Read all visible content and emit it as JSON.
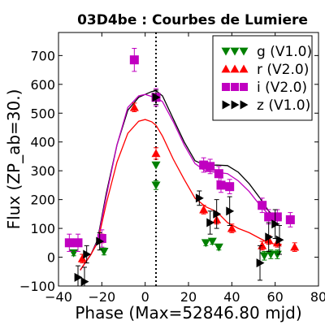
{
  "chart_data": {
    "type": "scatter",
    "title": "03D4be : Courbes de Lumiere",
    "xlabel": "Phase (Max=52846.80 mjd)",
    "ylabel": "Flux (ZP_ab=30.)",
    "xlim": [
      -40,
      80
    ],
    "ylim": [
      -100,
      780
    ],
    "xticks": [
      -40,
      -20,
      0,
      20,
      40,
      60,
      80
    ],
    "yticks": [
      -100,
      0,
      100,
      200,
      300,
      400,
      500,
      600,
      700
    ],
    "max_phase_line": 5,
    "legend_position": "top-right",
    "series": [
      {
        "name": "g (V1.0)",
        "color": "#008000",
        "marker": "triangle-down",
        "points": [
          [
            -33,
            15,
            10
          ],
          [
            -19,
            20,
            12
          ],
          [
            5,
            250,
            15
          ],
          [
            5,
            320,
            0
          ],
          [
            28,
            50,
            10
          ],
          [
            31,
            55,
            10
          ],
          [
            34,
            35,
            10
          ],
          [
            55,
            5,
            15
          ],
          [
            58,
            10,
            15
          ],
          [
            61,
            10,
            15
          ]
        ]
      },
      {
        "name": "r (V2.0)",
        "color": "#ff0000",
        "marker": "triangle-up",
        "points": [
          [
            -29,
            -5,
            15
          ],
          [
            -20,
            65,
            15
          ],
          [
            -5,
            520,
            15
          ],
          [
            5,
            360,
            20
          ],
          [
            27,
            165,
            15
          ],
          [
            33,
            130,
            15
          ],
          [
            40,
            100,
            15
          ],
          [
            54,
            40,
            15
          ],
          [
            57,
            60,
            15
          ],
          [
            61,
            50,
            15
          ],
          [
            69,
            35,
            15
          ]
        ]
      },
      {
        "name": "i (V2.0)",
        "color": "#c000c0",
        "marker": "square",
        "points": [
          [
            -35,
            50,
            30
          ],
          [
            -31,
            50,
            30
          ],
          [
            -20,
            65,
            30
          ],
          [
            -5,
            685,
            40
          ],
          [
            5,
            555,
            30
          ],
          [
            27,
            320,
            25
          ],
          [
            30,
            315,
            25
          ],
          [
            34,
            290,
            25
          ],
          [
            35,
            250,
            25
          ],
          [
            39,
            245,
            25
          ],
          [
            54,
            180,
            25
          ],
          [
            57,
            140,
            25
          ],
          [
            61,
            140,
            25
          ],
          [
            67,
            130,
            25
          ]
        ]
      },
      {
        "name": "z (V1.0)",
        "color": "#000000",
        "marker": "triangle-right",
        "points": [
          [
            -31,
            -70,
            40
          ],
          [
            -28,
            -85,
            50
          ],
          [
            -27,
            10,
            30
          ],
          [
            -21,
            55,
            30
          ],
          [
            5,
            555,
            25
          ],
          [
            25,
            205,
            25
          ],
          [
            30,
            120,
            40
          ],
          [
            33,
            150,
            50
          ],
          [
            39,
            160,
            50
          ],
          [
            53,
            -20,
            60
          ],
          [
            57,
            70,
            50
          ],
          [
            60,
            115,
            50
          ],
          [
            62,
            60,
            50
          ]
        ]
      }
    ],
    "curves": [
      {
        "name": "black",
        "color": "#000000",
        "points": [
          [
            -30,
            -45
          ],
          [
            -25,
            10
          ],
          [
            -22,
            60
          ],
          [
            -18,
            220
          ],
          [
            -13,
            390
          ],
          [
            -8,
            510
          ],
          [
            -3,
            555
          ],
          [
            0,
            565
          ],
          [
            3,
            575
          ],
          [
            5,
            578
          ],
          [
            8,
            560
          ],
          [
            13,
            480
          ],
          [
            18,
            400
          ],
          [
            23,
            335
          ],
          [
            28,
            318
          ],
          [
            33,
            320
          ],
          [
            38,
            318
          ],
          [
            43,
            295
          ],
          [
            48,
            255
          ],
          [
            53,
            205
          ],
          [
            57,
            160
          ],
          [
            60,
            140
          ],
          [
            63,
            135
          ]
        ]
      },
      {
        "name": "magenta",
        "color": "#c000c0",
        "points": [
          [
            -30,
            -45
          ],
          [
            -25,
            10
          ],
          [
            -22,
            55
          ],
          [
            -18,
            210
          ],
          [
            -13,
            390
          ],
          [
            -8,
            520
          ],
          [
            -3,
            560
          ],
          [
            0,
            565
          ],
          [
            3,
            558
          ],
          [
            5,
            555
          ],
          [
            8,
            540
          ],
          [
            13,
            470
          ],
          [
            18,
            390
          ],
          [
            23,
            325
          ],
          [
            28,
            298
          ],
          [
            33,
            295
          ],
          [
            38,
            290
          ],
          [
            43,
            265
          ],
          [
            48,
            228
          ],
          [
            53,
            180
          ],
          [
            57,
            148
          ],
          [
            60,
            135
          ],
          [
            63,
            132
          ]
        ]
      },
      {
        "name": "red",
        "color": "#ff0000",
        "points": [
          [
            -30,
            -45
          ],
          [
            -25,
            10
          ],
          [
            -22,
            50
          ],
          [
            -18,
            185
          ],
          [
            -13,
            330
          ],
          [
            -8,
            430
          ],
          [
            -3,
            472
          ],
          [
            0,
            478
          ],
          [
            3,
            470
          ],
          [
            5,
            458
          ],
          [
            8,
            420
          ],
          [
            13,
            340
          ],
          [
            18,
            270
          ],
          [
            23,
            205
          ],
          [
            28,
            175
          ],
          [
            33,
            158
          ],
          [
            38,
            120
          ],
          [
            43,
            100
          ],
          [
            48,
            85
          ],
          [
            53,
            65
          ],
          [
            57,
            50
          ],
          [
            60,
            45
          ],
          [
            63,
            45
          ]
        ]
      }
    ]
  }
}
